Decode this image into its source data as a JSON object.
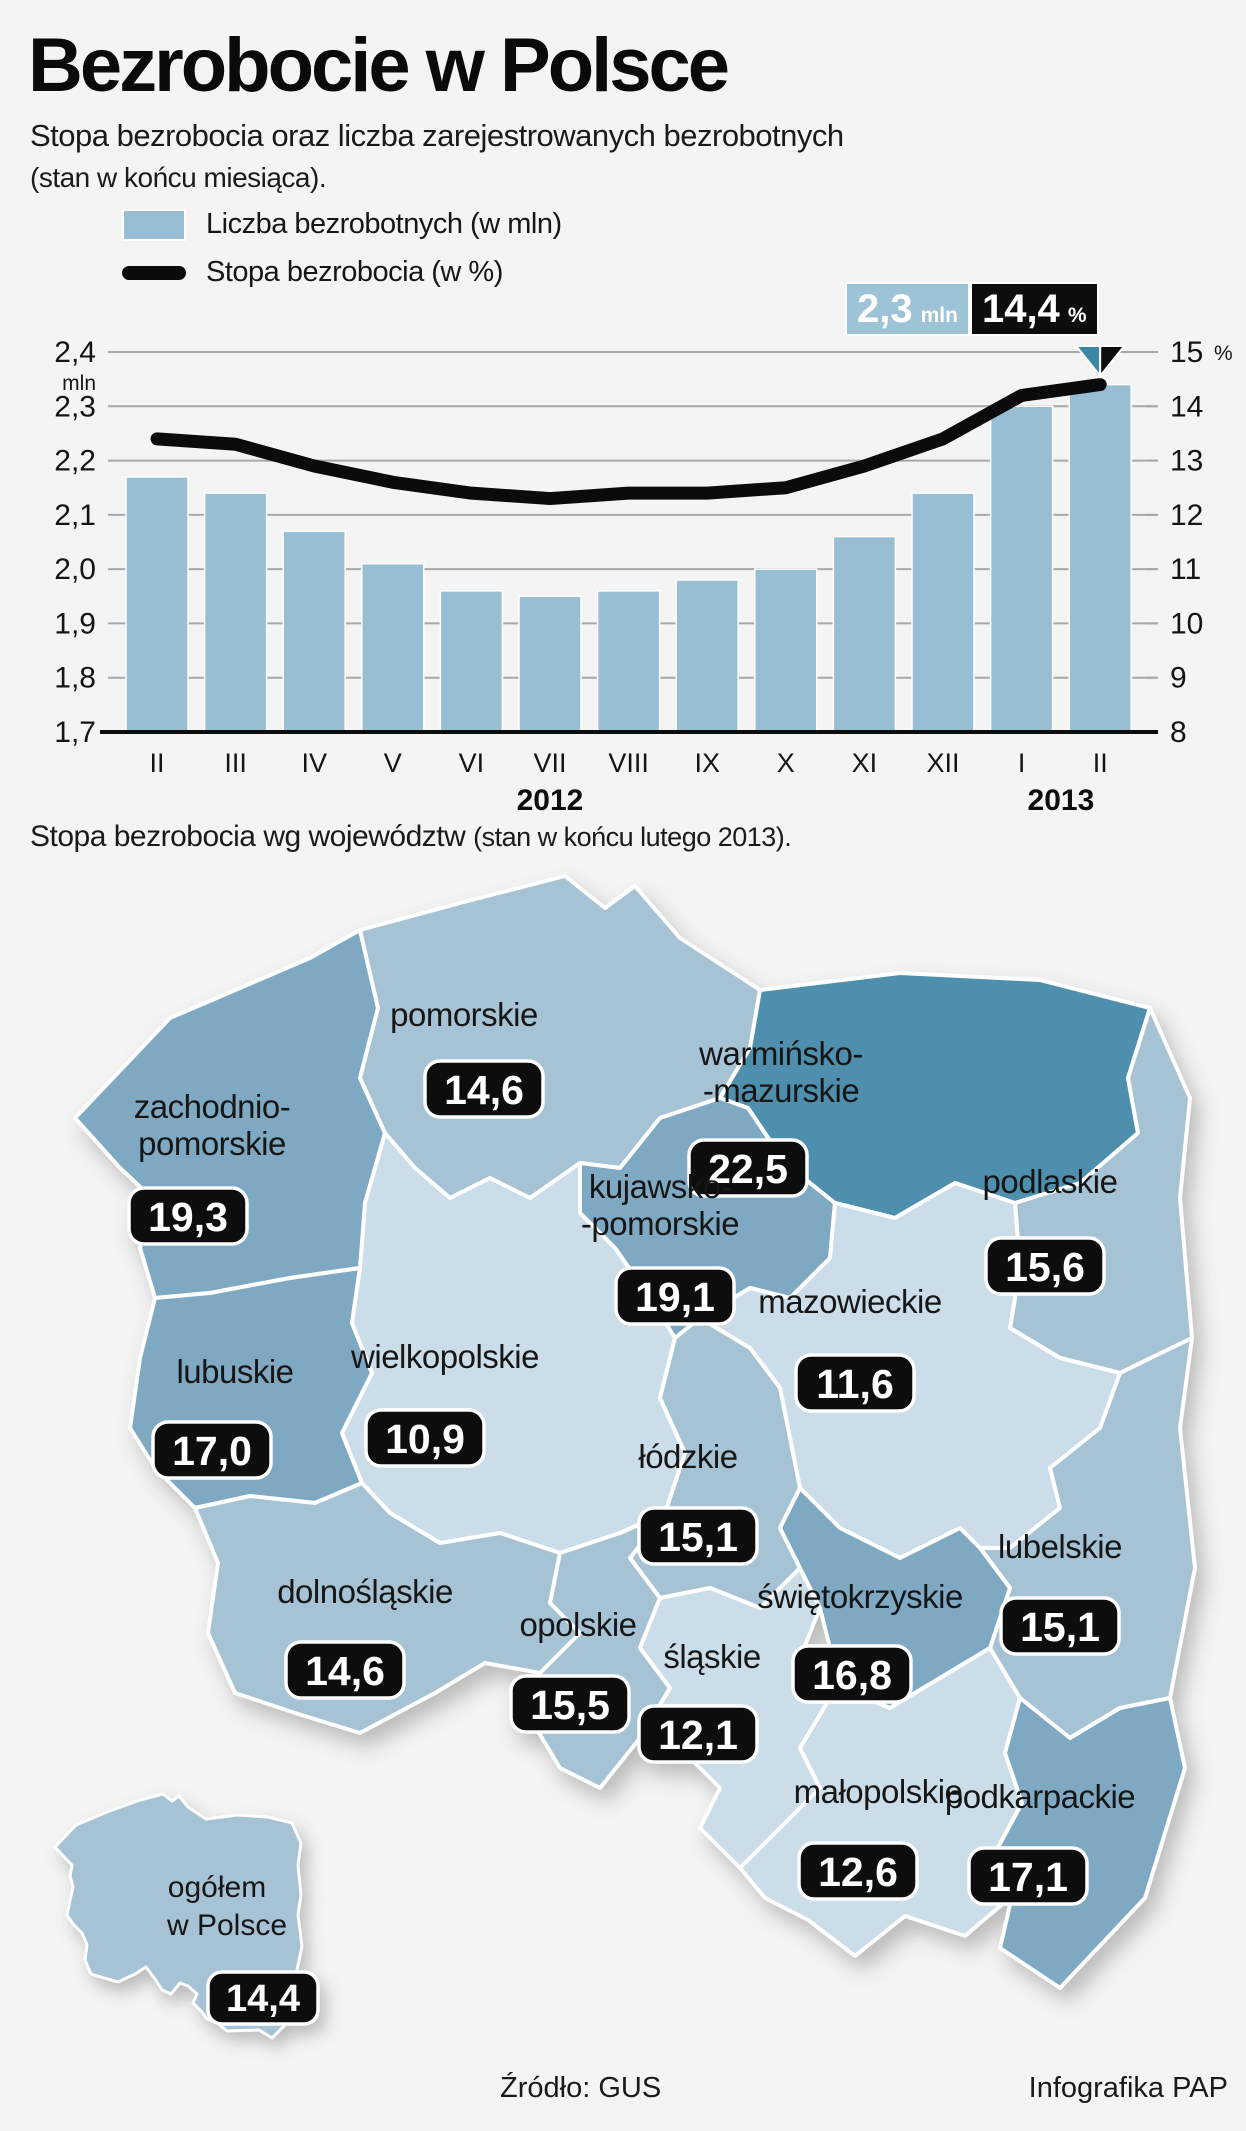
{
  "header": {
    "title": "Bezrobocie w Polsce",
    "subtitle": "Stopa bezrobocia oraz liczba zarejestrowanych bezrobotnych",
    "subtitle_note": "(stan w końcu miesiąca)."
  },
  "chart": {
    "legend": [
      {
        "label": "Liczba bezrobotnych (w mln)"
      },
      {
        "label": "Stopa bezrobocia (w %)"
      }
    ],
    "callout": {
      "value_mln": "2,3",
      "unit_mln": "mln",
      "value_pct": "14,4",
      "unit_pct": "%"
    }
  },
  "chart_data": {
    "type": "bar+line",
    "categories": [
      "II",
      "III",
      "IV",
      "V",
      "VI",
      "VII",
      "VIII",
      "IX",
      "X",
      "XI",
      "XII",
      "I",
      "II"
    ],
    "year_groups": [
      {
        "label": "2012",
        "center_index": 5
      },
      {
        "label": "2013",
        "center_index": 11.5
      }
    ],
    "series": [
      {
        "name": "Liczba bezrobotnych (w mln)",
        "type": "bar",
        "axis": "left",
        "values": [
          2.17,
          2.14,
          2.07,
          2.01,
          1.96,
          1.95,
          1.96,
          1.98,
          2.0,
          2.06,
          2.14,
          2.3,
          2.34
        ]
      },
      {
        "name": "Stopa bezrobocia (w %)",
        "type": "line",
        "axis": "right",
        "values": [
          13.4,
          13.3,
          12.9,
          12.6,
          12.4,
          12.3,
          12.4,
          12.4,
          12.5,
          12.9,
          13.4,
          14.2,
          14.4
        ]
      }
    ],
    "left_axis": {
      "min": 1.7,
      "max": 2.4,
      "step": 0.1,
      "unit": "mln",
      "ticks": [
        "2,4",
        "2,3",
        "2,2",
        "2,1",
        "2,0",
        "1,9",
        "1,8",
        "1,7"
      ]
    },
    "right_axis": {
      "min": 8,
      "max": 15,
      "step": 1,
      "unit": "%",
      "ticks": [
        "15",
        "14",
        "13",
        "12",
        "11",
        "10",
        "9",
        "8"
      ]
    },
    "grid": true,
    "legend_position": "top-left"
  },
  "map": {
    "title": "Stopa bezrobocia wg województw",
    "title_note": "(stan w końcu lutego 2013).",
    "regions": [
      {
        "id": "zachodniopomorskie",
        "name_lines": [
          "zachodnio-",
          "pomorskie"
        ],
        "value": "19,3",
        "shade": "medium"
      },
      {
        "id": "pomorskie",
        "name_lines": [
          "pomorskie"
        ],
        "value": "14,6",
        "shade": "light"
      },
      {
        "id": "warminsko_mazurskie",
        "name_lines": [
          "warmińsko-",
          "-mazurskie"
        ],
        "value": "22,5",
        "shade": "dark"
      },
      {
        "id": "podlaskie",
        "name_lines": [
          "podlaskie"
        ],
        "value": "15,6",
        "shade": "light"
      },
      {
        "id": "kujawsko_pomorskie",
        "name_lines": [
          "kujawsko-",
          "-pomorskie"
        ],
        "value": "19,1",
        "shade": "medium"
      },
      {
        "id": "mazowieckie",
        "name_lines": [
          "mazowieckie"
        ],
        "value": "11,6",
        "shade": "very_light"
      },
      {
        "id": "lubuskie",
        "name_lines": [
          "lubuskie"
        ],
        "value": "17,0",
        "shade": "medium"
      },
      {
        "id": "wielkopolskie",
        "name_lines": [
          "wielkopolskie"
        ],
        "value": "10,9",
        "shade": "very_light"
      },
      {
        "id": "lodzkie",
        "name_lines": [
          "łódzkie"
        ],
        "value": "15,1",
        "shade": "light"
      },
      {
        "id": "lubelskie",
        "name_lines": [
          "lubelskie"
        ],
        "value": "15,1",
        "shade": "light"
      },
      {
        "id": "dolnoslaskie",
        "name_lines": [
          "dolnośląskie"
        ],
        "value": "14,6",
        "shade": "light"
      },
      {
        "id": "opolskie",
        "name_lines": [
          "opolskie"
        ],
        "value": "15,5",
        "shade": "light"
      },
      {
        "id": "slaskie",
        "name_lines": [
          "śląskie"
        ],
        "value": "12,1",
        "shade": "very_light"
      },
      {
        "id": "swietokrzyskie",
        "name_lines": [
          "świętokrzyskie"
        ],
        "value": "16,8",
        "shade": "medium"
      },
      {
        "id": "malopolskie",
        "name_lines": [
          "małopolskie"
        ],
        "value": "12,6",
        "shade": "very_light"
      },
      {
        "id": "podkarpackie",
        "name_lines": [
          "podkarpackie"
        ],
        "value": "17,1",
        "shade": "medium"
      }
    ],
    "inset": {
      "line1": "ogółem",
      "line2": "w Polsce",
      "value": "14,4"
    }
  },
  "footer": {
    "source": "Źródło: GUS",
    "credit": "Infografika PAP"
  },
  "colors": {
    "bar": "#97bed3",
    "line": "#0b0b0b",
    "callout_blue": "#9dc3d6",
    "callout_black": "#0d0d0d",
    "pointer_teal": "#3c86a6",
    "grid": "#a8a8a8",
    "baseline": "#0d0d0d",
    "shade_dark": "#4d8fac",
    "shade_medium": "#7fa9c3",
    "shade_light": "#a6c3d5",
    "shade_very_light": "#cbdde9",
    "badge_bg": "#0d0d0d",
    "badge_text": "#ffffff",
    "map_label": "#161616"
  }
}
